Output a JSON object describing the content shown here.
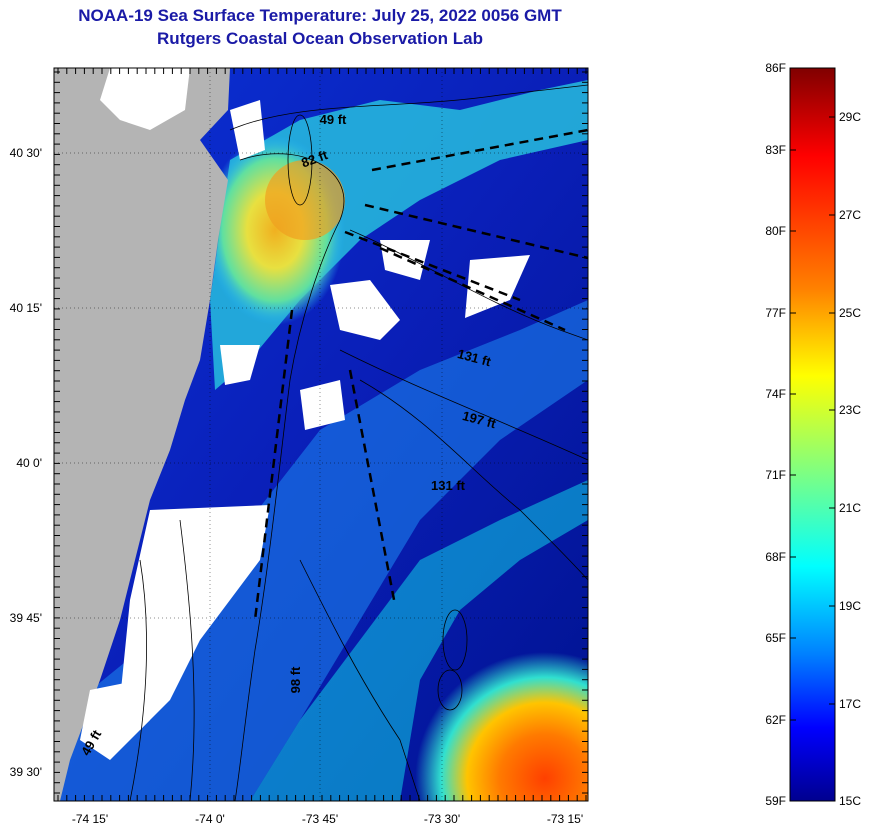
{
  "title": {
    "line1": "NOAA-19 Sea Surface Temperature:  July 25, 2022 0056 GMT",
    "line2": "Rutgers Coastal Ocean Observation Lab"
  },
  "map": {
    "lat_labels": [
      "40 30'",
      "40 15'",
      "40 0'",
      "39 45'",
      "39 30'"
    ],
    "lon_labels": [
      "-74 15'",
      "-74 0'",
      "-73 45'",
      "-73 30'",
      "-73 15'"
    ],
    "depth_labels": [
      "49 ft",
      "82 ft",
      "131 ft",
      "197 ft",
      "131 ft",
      "98 ft",
      "49 ft"
    ],
    "colors": {
      "land": "#b4b4b4",
      "cloud": "#ffffff",
      "contour": "#000000"
    }
  },
  "colorbar": {
    "f_labels": [
      "86F",
      "83F",
      "80F",
      "77F",
      "74F",
      "71F",
      "68F",
      "65F",
      "62F",
      "59F"
    ],
    "c_labels": [
      "29C",
      "27C",
      "25C",
      "23C",
      "21C",
      "19C",
      "17C",
      "15C"
    ],
    "stops": [
      "#800000",
      "#ff0000",
      "#ff8000",
      "#ffff00",
      "#80ff80",
      "#00ffff",
      "#0080ff",
      "#0000ff",
      "#00008f"
    ]
  }
}
